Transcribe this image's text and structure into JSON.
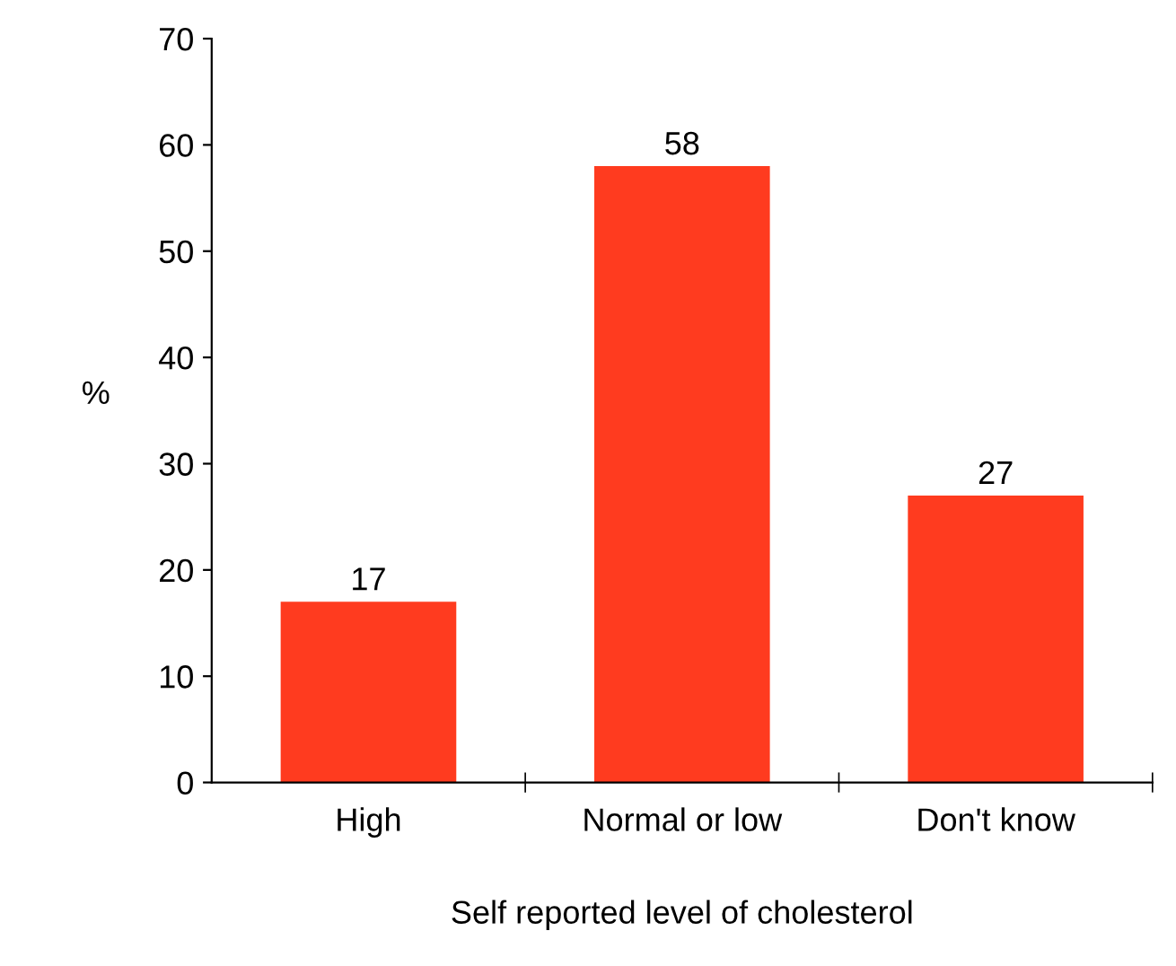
{
  "chart_data": {
    "type": "bar",
    "xlabel": "Self reported level of cholesterol",
    "ylabel": "%",
    "categories": [
      "High",
      "Normal or low",
      "Don't know"
    ],
    "values": [
      17,
      58,
      27
    ],
    "color": "#ff3b1f",
    "ylim": [
      0,
      70
    ],
    "yticks": [
      0,
      10,
      20,
      30,
      40,
      50,
      60,
      70
    ],
    "grid": false,
    "data_labels": true,
    "legend": false
  }
}
